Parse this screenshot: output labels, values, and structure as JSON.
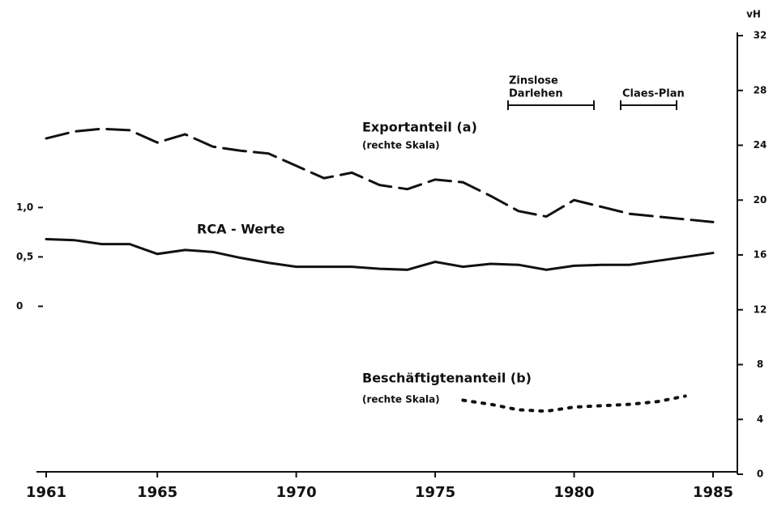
{
  "chart_data": {
    "type": "line",
    "y2label": "vH",
    "annotations": [
      "Exportanteil (a)",
      "(rechte Skala)",
      "RCA - Werte",
      "Beschäftigtenanteil (b)",
      "(rechte Skala)",
      "Zinslose",
      "Darlehen",
      "Claes-Plan"
    ],
    "x": [
      1961,
      1962,
      1963,
      1964,
      1965,
      1966,
      1967,
      1968,
      1969,
      1970,
      1971,
      1972,
      1973,
      1974,
      1975,
      1976,
      1977,
      1978,
      1979,
      1980,
      1981,
      1982,
      1983,
      1984,
      1985
    ],
    "xlim": [
      1961,
      1985
    ],
    "xticks": [
      1961,
      1965,
      1970,
      1975,
      1980,
      1985
    ],
    "ylim": [
      -1.7,
      2.74
    ],
    "yticks": [
      {
        "value": 0,
        "label": "0"
      },
      {
        "value": 0.5,
        "label": "0,5"
      },
      {
        "value": 1.0,
        "label": "1,0"
      }
    ],
    "y2lim": [
      0,
      32
    ],
    "y2ticks": [
      0,
      4,
      8,
      12,
      16,
      20,
      24,
      28,
      32
    ],
    "series": [
      {
        "name": "Exportanteil (a)",
        "axis": "y2",
        "color": "#111",
        "line_style": "dashed",
        "values": [
          24.5,
          25.0,
          25.2,
          25.1,
          24.2,
          24.8,
          23.9,
          23.6,
          23.4,
          22.5,
          21.6,
          22.0,
          21.1,
          20.8,
          21.5,
          21.3,
          20.3,
          19.2,
          18.8,
          20.0,
          19.5,
          19.0,
          18.8,
          18.6,
          18.4
        ]
      },
      {
        "name": "RCA - Werte",
        "axis": "y",
        "color": "#111",
        "line_style": "solid",
        "values": [
          0.68,
          0.67,
          0.63,
          0.63,
          0.53,
          0.57,
          0.55,
          0.49,
          0.44,
          0.4,
          0.4,
          0.4,
          0.38,
          0.37,
          0.45,
          0.4,
          0.43,
          0.42,
          0.37,
          0.41,
          0.42,
          0.42,
          0.46,
          0.5,
          0.54
        ]
      },
      {
        "name": "Beschäftigtenanteil (b)",
        "axis": "y2",
        "color": "#111",
        "line_style": "dotted",
        "values": [
          null,
          null,
          null,
          null,
          null,
          null,
          null,
          null,
          null,
          null,
          null,
          null,
          null,
          null,
          null,
          5.4,
          5.1,
          4.7,
          4.6,
          4.9,
          5.0,
          5.1,
          5.3,
          5.7,
          null
        ]
      }
    ]
  }
}
